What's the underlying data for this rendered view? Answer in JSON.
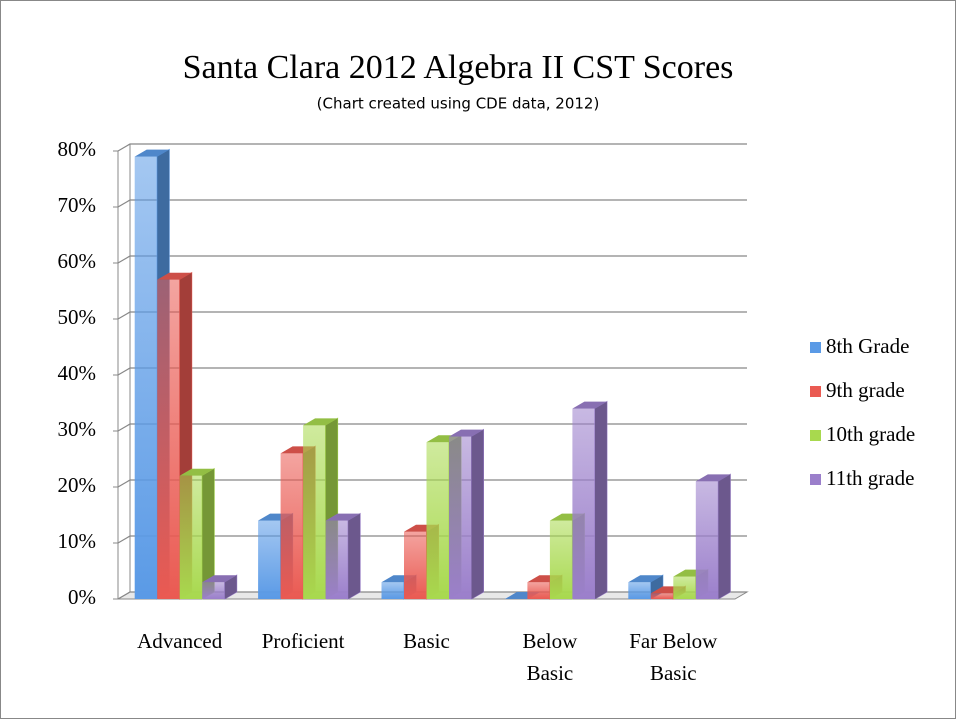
{
  "chart_data": {
    "type": "bar3d",
    "title": "Santa Clara 2012 Algebra II CST Scores",
    "subtitle": "(Chart created using CDE data, 2012)",
    "categories": [
      "Advanced",
      "Proficient",
      "Basic",
      "Below Basic",
      "Far Below Basic"
    ],
    "series": [
      {
        "name": "8th Grade",
        "color": "#5a9ae6",
        "values": [
          79,
          14,
          3,
          0,
          3
        ]
      },
      {
        "name": "9th grade",
        "color": "#ea5a52",
        "values": [
          57,
          26,
          12,
          3,
          1
        ]
      },
      {
        "name": "10th grade",
        "color": "#a8d94e",
        "values": [
          22,
          31,
          28,
          14,
          4
        ]
      },
      {
        "name": "11th grade",
        "color": "#9b7fcb",
        "values": [
          3,
          14,
          29,
          34,
          21
        ]
      }
    ],
    "ylim": [
      0,
      80
    ],
    "yticks": [
      {
        "value": 0,
        "label": "0%"
      },
      {
        "value": 10,
        "label": "10%"
      },
      {
        "value": 20,
        "label": "20%"
      },
      {
        "value": 30,
        "label": "30%"
      },
      {
        "value": 40,
        "label": "40%"
      },
      {
        "value": 50,
        "label": "50%"
      },
      {
        "value": 60,
        "label": "60%"
      },
      {
        "value": 70,
        "label": "70%"
      },
      {
        "value": 80,
        "label": "80%"
      }
    ],
    "grid": true,
    "legend": "right"
  }
}
